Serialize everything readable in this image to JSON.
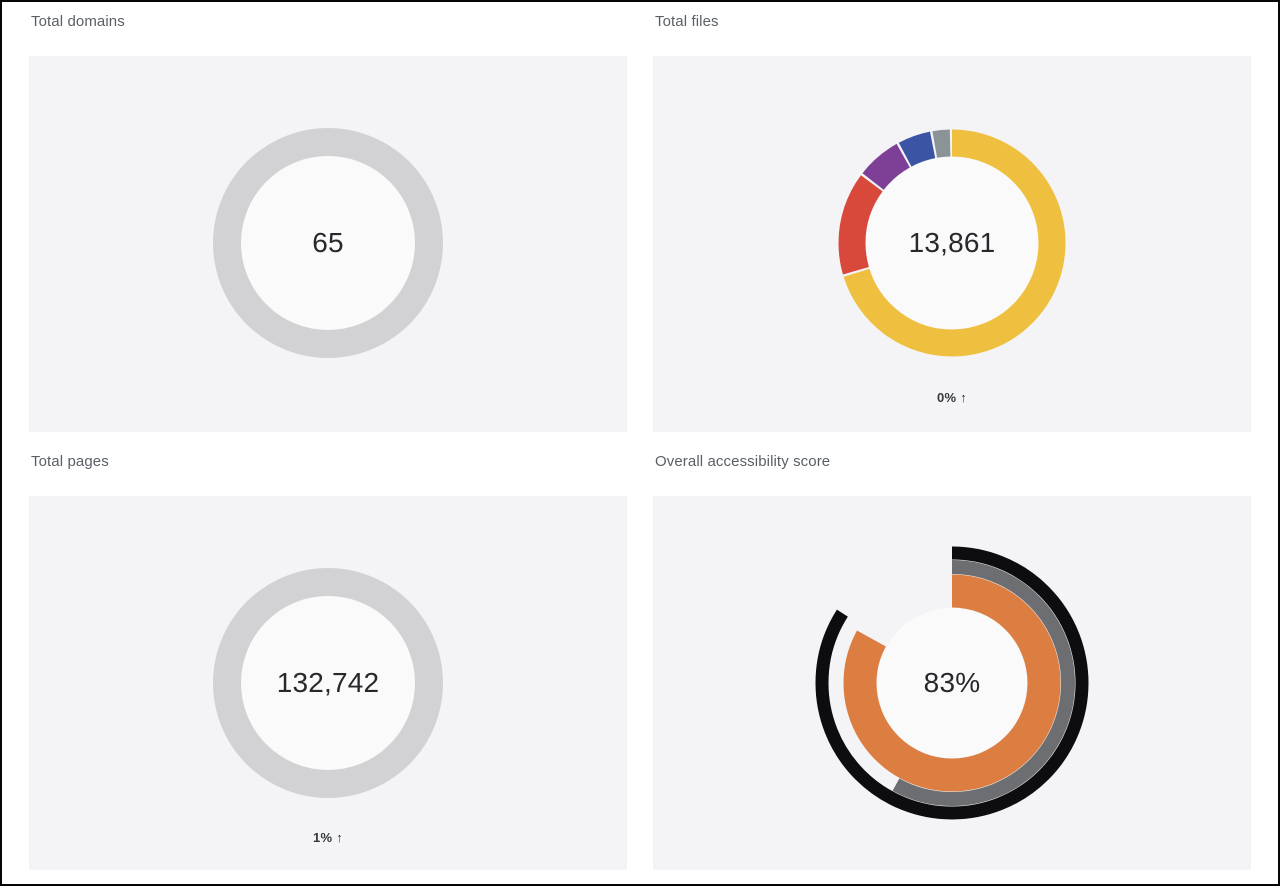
{
  "page": {
    "background": "#ffffff",
    "border_color": "#060606",
    "panel_background": "#f4f4f6",
    "hole_color": "#fafafb",
    "title_color": "#5a5f66",
    "value_color": "#26282b"
  },
  "chart_data": [
    {
      "type": "donut",
      "title": "Total domains",
      "center_value": "65",
      "segments": [
        {
          "label": "domains-total",
          "percent": 100,
          "color": "#d2d2d4"
        }
      ],
      "geometry": {
        "radius": 101,
        "thickness": 28,
        "hole_fill": "#fafafb"
      }
    },
    {
      "type": "donut",
      "title": "Total files",
      "center_value": "13,861",
      "delta": "0% ↑",
      "segments": [
        {
          "label": "segment-1",
          "percent": 70.5,
          "color": "#efbf3f"
        },
        {
          "label": "segment-2",
          "percent": 15,
          "color": "#d8493c"
        },
        {
          "label": "segment-3",
          "percent": 6.7,
          "color": "#7e3f97"
        },
        {
          "label": "segment-4",
          "percent": 5,
          "color": "#3c54a4"
        },
        {
          "label": "segment-5",
          "percent": 2.8,
          "color": "#8a9396"
        }
      ],
      "geometry": {
        "radius": 100,
        "thickness": 27,
        "hole_fill": "#fafafb",
        "gap_percent": 0.35
      }
    },
    {
      "type": "donut",
      "title": "Total pages",
      "center_value": "132,742",
      "delta": "1% ↑",
      "segments": [
        {
          "label": "pages-total",
          "percent": 100,
          "color": "#d2d2d4"
        }
      ],
      "geometry": {
        "radius": 101,
        "thickness": 28,
        "hole_fill": "#fafafb"
      }
    },
    {
      "type": "gauge",
      "title": "Overall accessibility score",
      "center_value": "83%",
      "rings": [
        {
          "label": "outer-ring",
          "percent": 84,
          "color": "#0d0d10",
          "radius": 130,
          "thickness": 13
        },
        {
          "label": "middle-ring",
          "percent": 58,
          "color": "#6d6e71",
          "radius": 116,
          "thickness": 14
        },
        {
          "label": "inner-ring",
          "percent": 83,
          "color": "#dc7e42",
          "radius": 92,
          "thickness": 33
        }
      ],
      "geometry": {
        "hole_fill": "#fafafb",
        "hole_radius": 75
      }
    }
  ]
}
